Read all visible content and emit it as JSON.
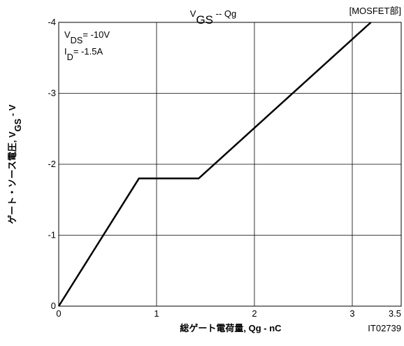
{
  "chart_data": {
    "type": "line",
    "title": [
      "V",
      "GS",
      "  --  Qg"
    ],
    "annotation": "[MOSFET部]",
    "conditions": [
      [
        "V",
        "DS",
        "= -10V"
      ],
      [
        "I",
        "D",
        "= -1.5A"
      ]
    ],
    "x_label": "総ゲート電荷量, Qg - nC",
    "y_label": [
      "ゲート・ソース電圧, V",
      "GS",
      " - V"
    ],
    "code": "IT02739",
    "x": [
      0,
      0.82,
      1.43,
      3.19
    ],
    "values": [
      0,
      -1.8,
      -1.8,
      -4
    ],
    "color": "#000000",
    "xlim": [
      0,
      3.5
    ],
    "xticks": [
      0,
      1,
      2,
      3,
      3.5
    ],
    "ylim": [
      0,
      -4
    ],
    "yticks": [
      0,
      -1,
      -2,
      -3,
      -4
    ],
    "grid": true
  }
}
